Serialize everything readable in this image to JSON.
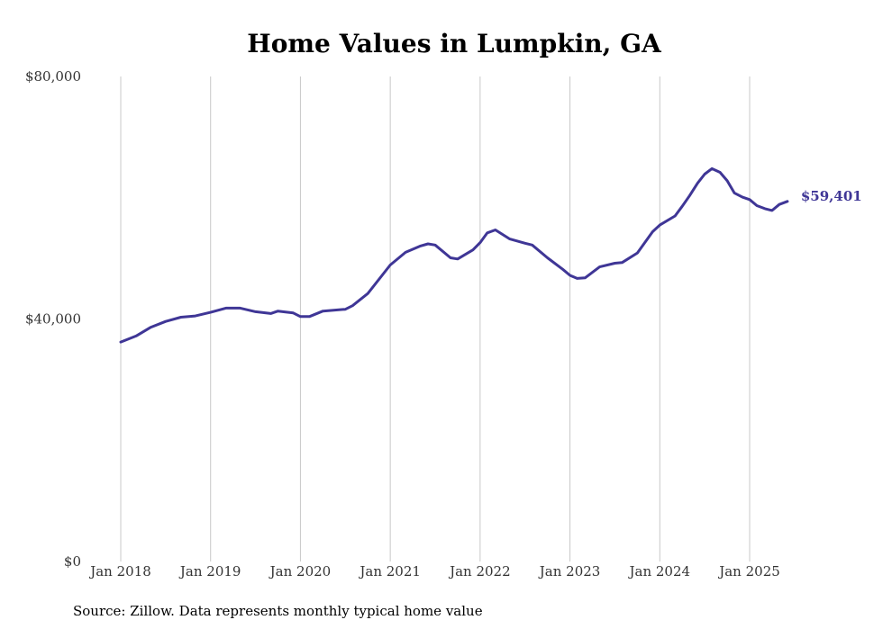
{
  "chart_data": {
    "type": "line",
    "title": "Home Values in Lumpkin, GA",
    "xlabel": "",
    "ylabel": "",
    "x_ticks": [
      {
        "label": "Jan 2018",
        "x": 2018.0
      },
      {
        "label": "Jan 2019",
        "x": 2019.0
      },
      {
        "label": "Jan 2020",
        "x": 2020.0
      },
      {
        "label": "Jan 2021",
        "x": 2021.0
      },
      {
        "label": "Jan 2022",
        "x": 2022.0
      },
      {
        "label": "Jan 2023",
        "x": 2023.0
      },
      {
        "label": "Jan 2024",
        "x": 2024.0
      },
      {
        "label": "Jan 2025",
        "x": 2025.0
      }
    ],
    "y_ticks": [
      {
        "label": "$0",
        "value": 0
      },
      {
        "label": "$40,000",
        "value": 40000
      },
      {
        "label": "$80,000",
        "value": 80000
      }
    ],
    "xlim": [
      2018.0,
      2025.4
    ],
    "ylim": [
      0,
      80000
    ],
    "grid": "vertical",
    "series": [
      {
        "color": "#3f3696",
        "points": [
          [
            2018.0,
            36200
          ],
          [
            2018.17,
            37200
          ],
          [
            2018.33,
            38600
          ],
          [
            2018.5,
            39600
          ],
          [
            2018.67,
            40300
          ],
          [
            2018.83,
            40500
          ],
          [
            2019.0,
            41100
          ],
          [
            2019.17,
            41800
          ],
          [
            2019.33,
            41800
          ],
          [
            2019.5,
            41200
          ],
          [
            2019.67,
            40900
          ],
          [
            2019.75,
            41300
          ],
          [
            2019.92,
            41000
          ],
          [
            2020.0,
            40400
          ],
          [
            2020.1,
            40400
          ],
          [
            2020.25,
            41300
          ],
          [
            2020.5,
            41600
          ],
          [
            2020.58,
            42200
          ],
          [
            2020.75,
            44200
          ],
          [
            2021.0,
            48900
          ],
          [
            2021.17,
            51000
          ],
          [
            2021.33,
            52000
          ],
          [
            2021.42,
            52400
          ],
          [
            2021.5,
            52200
          ],
          [
            2021.67,
            50100
          ],
          [
            2021.75,
            49900
          ],
          [
            2021.92,
            51400
          ],
          [
            2022.0,
            52600
          ],
          [
            2022.08,
            54200
          ],
          [
            2022.17,
            54700
          ],
          [
            2022.33,
            53200
          ],
          [
            2022.5,
            52500
          ],
          [
            2022.58,
            52200
          ],
          [
            2022.75,
            50100
          ],
          [
            2022.92,
            48200
          ],
          [
            2023.0,
            47200
          ],
          [
            2023.08,
            46700
          ],
          [
            2023.17,
            46800
          ],
          [
            2023.33,
            48600
          ],
          [
            2023.5,
            49200
          ],
          [
            2023.58,
            49300
          ],
          [
            2023.75,
            50900
          ],
          [
            2023.92,
            54400
          ],
          [
            2024.0,
            55500
          ],
          [
            2024.17,
            57000
          ],
          [
            2024.25,
            58600
          ],
          [
            2024.33,
            60300
          ],
          [
            2024.42,
            62400
          ],
          [
            2024.5,
            63900
          ],
          [
            2024.58,
            64800
          ],
          [
            2024.67,
            64200
          ],
          [
            2024.75,
            62800
          ],
          [
            2024.83,
            60800
          ],
          [
            2024.92,
            60100
          ],
          [
            2025.0,
            59700
          ],
          [
            2025.08,
            58700
          ],
          [
            2025.17,
            58200
          ],
          [
            2025.25,
            57900
          ],
          [
            2025.33,
            58900
          ],
          [
            2025.42,
            59401
          ]
        ]
      }
    ],
    "end_label": "$59,401",
    "annotation": "Source: Zillow. Data represents monthly typical home value"
  }
}
